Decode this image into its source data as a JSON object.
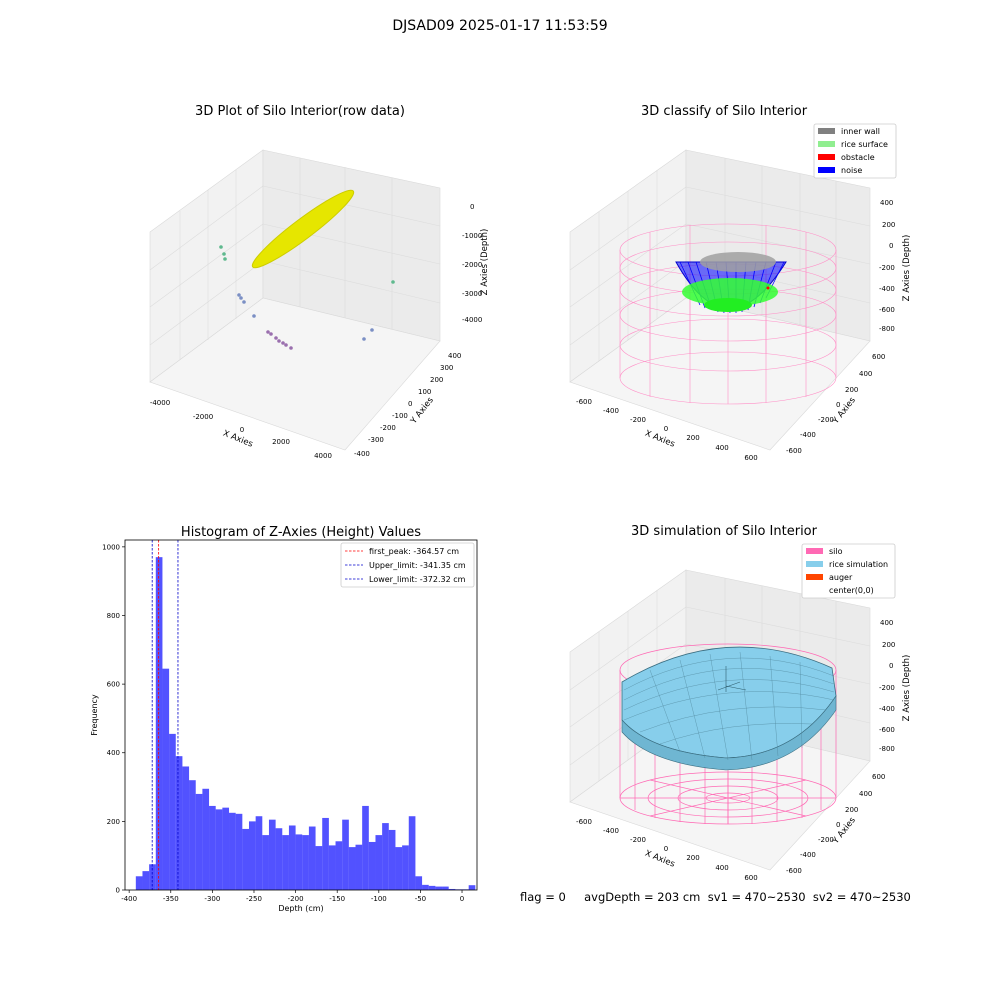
{
  "suptitle": "DJSAD09 2025-01-17 11:53:59",
  "panels": {
    "raw": {
      "title": "3D Plot of Silo Interior(row data)",
      "xlabel": "X Axies",
      "ylabel": "Y Axies",
      "zlabel": "Z Axies (Depth)",
      "xticks": [
        "-4000",
        "-2000",
        "0",
        "2000",
        "4000"
      ],
      "yticks": [
        "400",
        "300",
        "200",
        "100",
        "0",
        "-100",
        "-200",
        "-300",
        "-400"
      ],
      "zticks": [
        "0",
        "-1000",
        "-2000",
        "-3000",
        "-4000"
      ]
    },
    "classify": {
      "title": "3D classify of Silo Interior",
      "xlabel": "X Axies",
      "ylabel": "Y Axies",
      "zlabel": "Z Axies (Depth)",
      "xticks": [
        "-600",
        "-400",
        "-200",
        "0",
        "200",
        "400",
        "600"
      ],
      "yticks": [
        "600",
        "400",
        "200",
        "0",
        "-200",
        "-400",
        "-600"
      ],
      "zticks": [
        "400",
        "200",
        "0",
        "-200",
        "-400",
        "-600",
        "-800"
      ],
      "legend": [
        {
          "label": "inner wall",
          "color": "#808080"
        },
        {
          "label": "rice surface",
          "color": "#90ee90"
        },
        {
          "label": "obstacle",
          "color": "#ff0000"
        },
        {
          "label": "noise",
          "color": "#0000ff"
        }
      ]
    },
    "simulation": {
      "title": "3D simulation of Silo Interior",
      "xlabel": "X Axies",
      "ylabel": "Y Axies",
      "zlabel": "Z Axies (Depth)",
      "xticks": [
        "-600",
        "-400",
        "-200",
        "0",
        "200",
        "400",
        "600"
      ],
      "yticks": [
        "600",
        "400",
        "200",
        "0",
        "-200",
        "-400",
        "-600"
      ],
      "zticks": [
        "400",
        "200",
        "0",
        "-200",
        "-400",
        "-600",
        "-800"
      ],
      "legend": [
        {
          "label": "silo",
          "color": "#ff69b4"
        },
        {
          "label": "rice simulation",
          "color": "#87ceeb"
        },
        {
          "label": "auger",
          "color": "#ff4500"
        },
        {
          "label": "center(0,0)",
          "color": ""
        }
      ]
    }
  },
  "status_text": "flag = 0     avgDepth = 203 cm  sv1 = 470~2530  sv2 = 470~2530",
  "chart_data": {
    "type": "bar",
    "title": "Histogram of Z-Axies (Height) Values",
    "xlabel": "Depth (cm)",
    "ylabel": "Frequency",
    "xlim": [
      -405,
      18
    ],
    "ylim": [
      0,
      1020
    ],
    "xticks": [
      -400,
      -350,
      -300,
      -250,
      -200,
      -150,
      -100,
      -50,
      0
    ],
    "yticks": [
      0,
      200,
      400,
      600,
      800,
      1000
    ],
    "bar_color": "#0000ff",
    "bin_start": -392,
    "bin_width": 8,
    "values": [
      40,
      55,
      75,
      970,
      645,
      455,
      390,
      360,
      320,
      280,
      295,
      245,
      235,
      240,
      225,
      222,
      178,
      200,
      215,
      160,
      205,
      180,
      160,
      188,
      162,
      160,
      185,
      128,
      210,
      130,
      142,
      205,
      125,
      132,
      245,
      140,
      160,
      195,
      175,
      125,
      130,
      215,
      40,
      15,
      12,
      10,
      10,
      3,
      2,
      2,
      14
    ],
    "vlines": [
      {
        "label": "first_peak: -364.57 cm",
        "x": -364.57,
        "color": "#ff0000"
      },
      {
        "label": "Upper_limit: -341.35 cm",
        "x": -341.35,
        "color": "#0000cc"
      },
      {
        "label": "Lower_limit: -372.32 cm",
        "x": -372.32,
        "color": "#0000cc"
      }
    ],
    "legend_position": "upper right"
  }
}
